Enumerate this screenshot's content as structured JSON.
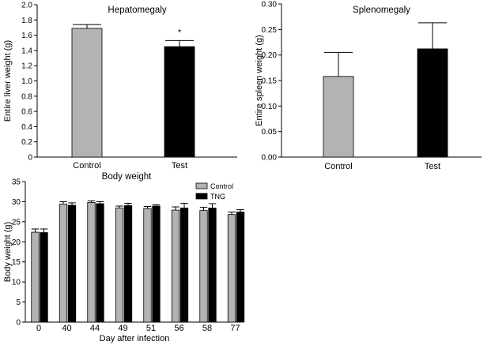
{
  "chart_data": [
    {
      "id": "liver",
      "type": "bar",
      "title": "Hepatomegaly",
      "xlabel": "",
      "ylabel": "Entire liver weight (g)",
      "ylim": [
        0,
        2.0
      ],
      "yticks": [
        "0",
        "0.2",
        "0.4",
        "0.6",
        "0.8",
        "1.0",
        "1.2",
        "1.4",
        "1.6",
        "1.8",
        "2.0"
      ],
      "categories": [
        "Control",
        "Test"
      ],
      "values": [
        1.69,
        1.45
      ],
      "errors": [
        0.05,
        0.08
      ],
      "colors": [
        "#b3b3b3",
        "#000000"
      ],
      "annotations": [
        {
          "category": "Test",
          "text": "*"
        }
      ]
    },
    {
      "id": "spleen",
      "type": "bar",
      "title": "Splenomegaly",
      "xlabel": "",
      "ylabel": "Entire spleen weight (g)",
      "ylim": [
        0,
        0.3
      ],
      "yticks": [
        "0.00",
        "0.05",
        "0.10",
        "0.15",
        "0.20",
        "0.25",
        "0.30"
      ],
      "categories": [
        "Control",
        "Test"
      ],
      "values": [
        0.158,
        0.212
      ],
      "errors": [
        0.047,
        0.051
      ],
      "colors": [
        "#b3b3b3",
        "#000000"
      ]
    },
    {
      "id": "body",
      "type": "bar",
      "title": "Body weight",
      "xlabel": "Day after infection",
      "ylabel": "Body weight (g)",
      "ylim": [
        0,
        35
      ],
      "yticks": [
        "0",
        "5",
        "10",
        "15",
        "20",
        "25",
        "30",
        "35"
      ],
      "categories": [
        "0",
        "40",
        "44",
        "49",
        "51",
        "56",
        "58",
        "77"
      ],
      "series": [
        {
          "name": "Control",
          "color": "#b3b3b3",
          "values": [
            22.4,
            29.4,
            29.8,
            28.4,
            28.3,
            27.9,
            27.8,
            26.8
          ],
          "errors": [
            0.8,
            0.6,
            0.4,
            0.5,
            0.5,
            0.8,
            0.8,
            0.6
          ]
        },
        {
          "name": "TNG",
          "color": "#000000",
          "values": [
            22.3,
            29.1,
            29.5,
            29.0,
            28.9,
            28.4,
            28.4,
            27.4
          ],
          "errors": [
            0.9,
            0.6,
            0.5,
            0.6,
            0.3,
            1.2,
            1.1,
            0.6
          ]
        }
      ],
      "legend": "top-right"
    }
  ]
}
